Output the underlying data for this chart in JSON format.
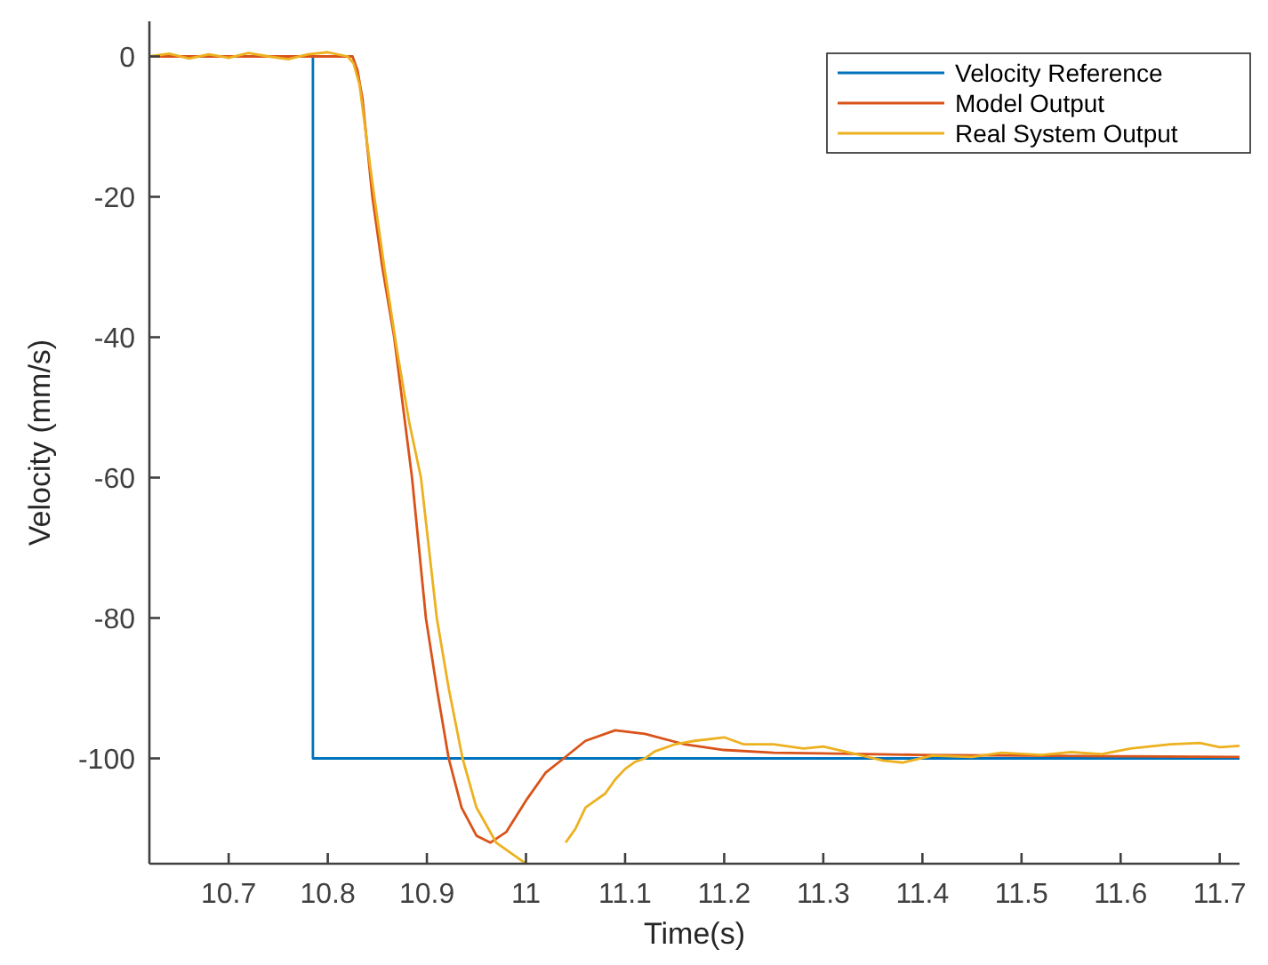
{
  "chart_data": {
    "type": "line",
    "xlabel": "Time(s)",
    "ylabel": "Velocity (mm/s)",
    "xlim": [
      10.62,
      11.72
    ],
    "ylim": [
      -115,
      5
    ],
    "xticks": [
      10.7,
      10.8,
      10.9,
      11,
      11.1,
      11.2,
      11.3,
      11.4,
      11.5,
      11.6,
      11.7
    ],
    "yticks": [
      -100,
      -80,
      -60,
      -40,
      -20,
      0
    ],
    "grid": false,
    "legend": "top right",
    "series": [
      {
        "name": "Velocity Reference",
        "color": "#0072bd",
        "x": [
          10.62,
          10.785,
          10.785,
          11.72
        ],
        "values": [
          0,
          0,
          -100,
          -100
        ]
      },
      {
        "name": "Model Output",
        "color": "#d95319",
        "x": [
          10.62,
          10.7,
          10.8,
          10.825,
          10.83,
          10.835,
          10.845,
          10.855,
          10.867,
          10.876,
          10.885,
          10.892,
          10.899,
          10.91,
          10.922,
          10.935,
          10.95,
          10.964,
          10.98,
          11.0,
          11.02,
          11.038,
          11.06,
          11.09,
          11.12,
          11.16,
          11.2,
          11.25,
          11.3,
          11.4,
          11.5,
          11.6,
          11.72
        ],
        "values": [
          0,
          0,
          0,
          0,
          -2,
          -6,
          -20,
          -30,
          -40,
          -50,
          -60,
          -70,
          -80,
          -90,
          -100,
          -107,
          -111,
          -112,
          -110.5,
          -106,
          -102,
          -100,
          -97.5,
          -96,
          -96.5,
          -98,
          -98.8,
          -99.2,
          -99.3,
          -99.5,
          -99.6,
          -99.7,
          -99.8
        ]
      },
      {
        "name": "Real System Output",
        "color": "#edb120",
        "x": [
          10.62,
          10.64,
          10.66,
          10.68,
          10.7,
          10.72,
          10.74,
          10.76,
          10.78,
          10.8,
          10.82,
          10.826,
          10.832,
          10.845,
          10.857,
          10.87,
          10.882,
          10.894,
          10.91,
          10.922,
          10.936,
          10.95,
          10.97,
          10.99,
          11.0,
          11.03,
          11.04,
          11.05,
          11.06,
          11.07,
          11.08,
          11.09,
          11.1,
          11.11,
          11.12,
          11.13,
          11.15,
          11.17,
          11.2,
          11.22,
          11.25,
          11.28,
          11.3,
          11.33,
          11.36,
          11.38,
          11.41,
          11.45,
          11.48,
          11.52,
          11.55,
          11.58,
          11.61,
          11.65,
          11.68,
          11.7,
          11.72
        ],
        "values": [
          0,
          0.4,
          -0.3,
          0.3,
          -0.2,
          0.5,
          0,
          -0.4,
          0.3,
          0.6,
          0,
          -1,
          -4,
          -18,
          -30,
          -42,
          -52,
          -60,
          -80,
          -90,
          -100,
          -107,
          -112,
          -114,
          -115,
          null,
          -112,
          -110,
          -107,
          -106,
          -105,
          -103,
          -101.5,
          -100.5,
          -100,
          -99,
          -98,
          -97.5,
          -97,
          -98,
          -98,
          -98.6,
          -98.3,
          -99.3,
          -100.3,
          -100.6,
          -99.6,
          -99.8,
          -99.2,
          -99.5,
          -99.1,
          -99.4,
          -98.6,
          -98,
          -97.8,
          -98.4,
          -98.2
        ]
      }
    ]
  }
}
